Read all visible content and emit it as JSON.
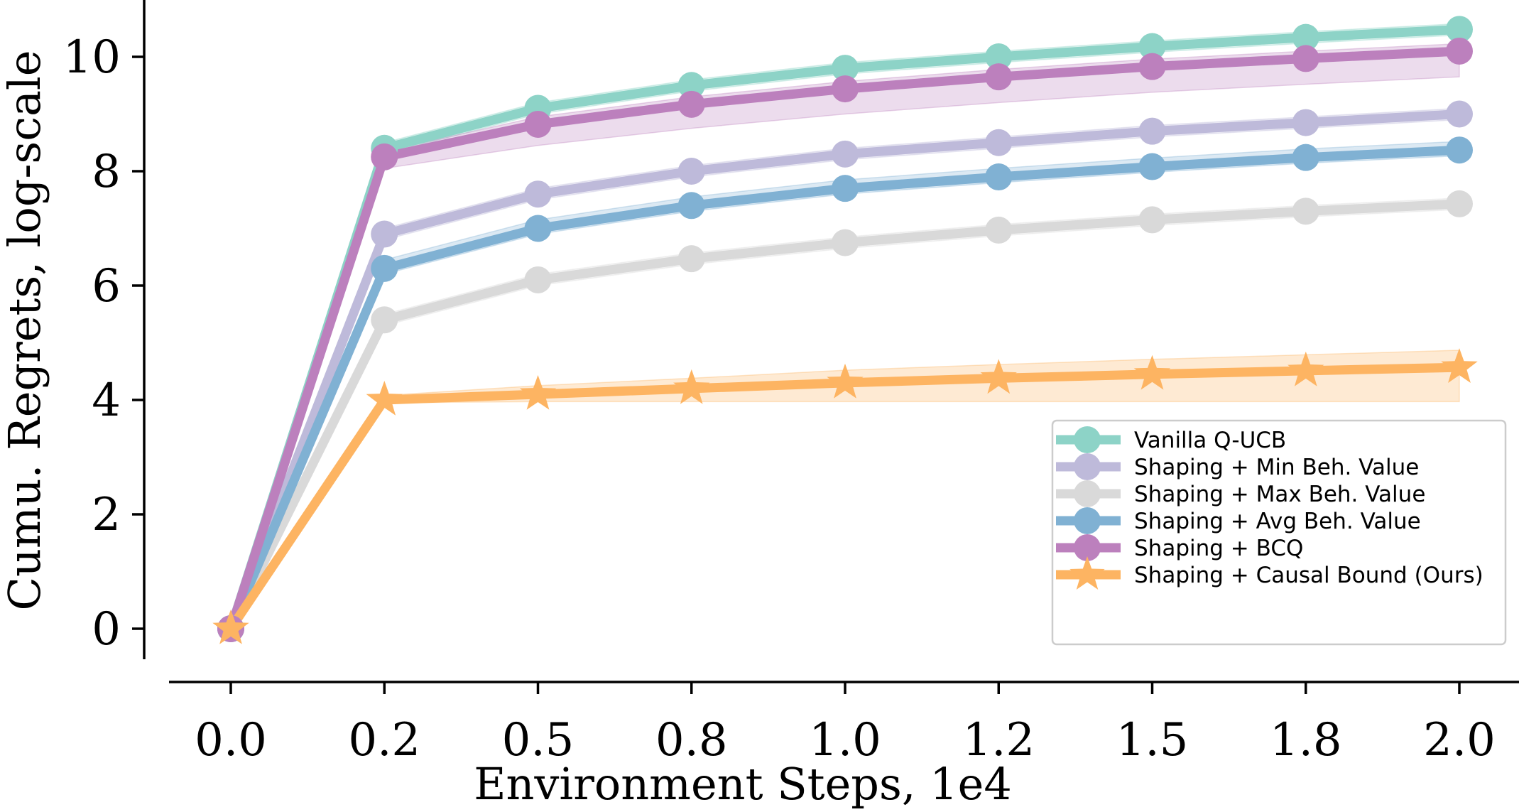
{
  "chart_data": {
    "type": "line",
    "title": "",
    "xlabel": "Environment Steps, 1e4",
    "ylabel": "Cumu. Regrets, log-scale",
    "x": [
      0.0,
      0.25,
      0.5,
      0.75,
      1.0,
      1.25,
      1.5,
      1.75,
      2.0
    ],
    "x_tick_labels": [
      "0.0",
      "0.2",
      "0.5",
      "0.8",
      "1.0",
      "1.2",
      "1.5",
      "1.8",
      "2.0"
    ],
    "y_ticks": [
      0,
      2,
      4,
      6,
      8,
      10
    ],
    "y_tick_labels": [
      "0",
      "2",
      "4",
      "6",
      "8",
      "10"
    ],
    "xlim": [
      -0.1,
      2.2
    ],
    "ylim": [
      -0.5,
      11.0
    ],
    "grid": false,
    "legend_position": "lower-right",
    "series": [
      {
        "name": "Vanilla Q-UCB",
        "color": "#8dd3c7",
        "marker": "circle",
        "values": [
          0.0,
          8.4,
          9.1,
          9.5,
          9.8,
          10.0,
          10.18,
          10.34,
          10.48
        ],
        "band_low": [
          0.0,
          8.3,
          9.0,
          9.4,
          9.7,
          9.9,
          10.08,
          10.24,
          10.38
        ],
        "band_high": [
          0.0,
          8.5,
          9.2,
          9.6,
          9.9,
          10.1,
          10.28,
          10.44,
          10.58
        ]
      },
      {
        "name": "Shaping + Min Beh. Value",
        "color": "#bebada",
        "marker": "circle",
        "values": [
          0.0,
          6.9,
          7.6,
          8.0,
          8.3,
          8.5,
          8.7,
          8.85,
          9.0
        ],
        "band_low": [
          0.0,
          6.8,
          7.5,
          7.9,
          8.2,
          8.4,
          8.6,
          8.75,
          8.9
        ],
        "band_high": [
          0.0,
          7.0,
          7.7,
          8.1,
          8.4,
          8.6,
          8.8,
          8.95,
          9.1
        ]
      },
      {
        "name": "Shaping + Max Beh. Value",
        "color": "#d9d9d9",
        "marker": "circle",
        "values": [
          0.0,
          5.4,
          6.1,
          6.47,
          6.75,
          6.97,
          7.15,
          7.3,
          7.43
        ],
        "band_low": [
          0.0,
          5.3,
          6.0,
          6.37,
          6.65,
          6.87,
          7.05,
          7.2,
          7.33
        ],
        "band_high": [
          0.0,
          5.5,
          6.2,
          6.57,
          6.85,
          7.07,
          7.25,
          7.4,
          7.53
        ]
      },
      {
        "name": "Shaping + Avg Beh. Value",
        "color": "#80b1d3",
        "marker": "circle",
        "values": [
          0.0,
          6.3,
          7.0,
          7.4,
          7.7,
          7.9,
          8.08,
          8.24,
          8.37
        ],
        "band_low": [
          0.0,
          6.2,
          6.9,
          7.3,
          7.6,
          7.8,
          7.98,
          8.14,
          8.27
        ],
        "band_high": [
          0.0,
          6.45,
          7.15,
          7.55,
          7.85,
          8.05,
          8.23,
          8.39,
          8.52
        ]
      },
      {
        "name": "Shaping + BCQ",
        "color": "#bc80bd",
        "marker": "circle",
        "values": [
          0.0,
          8.25,
          8.82,
          9.17,
          9.44,
          9.65,
          9.83,
          9.97,
          10.1
        ],
        "band_low": [
          0.0,
          8.05,
          8.45,
          8.75,
          9.0,
          9.2,
          9.38,
          9.52,
          9.65
        ],
        "band_high": [
          0.0,
          8.35,
          8.95,
          9.3,
          9.57,
          9.78,
          9.96,
          10.1,
          10.23
        ]
      },
      {
        "name": "Shaping + Causal Bound (Ours)",
        "color": "#fdb462",
        "marker": "star",
        "values": [
          0.0,
          4.0,
          4.1,
          4.2,
          4.3,
          4.38,
          4.45,
          4.51,
          4.57
        ],
        "band_low": [
          0.0,
          3.95,
          3.97,
          3.97,
          3.97,
          3.97,
          3.97,
          3.97,
          3.97
        ],
        "band_high": [
          0.0,
          4.08,
          4.25,
          4.38,
          4.52,
          4.62,
          4.71,
          4.79,
          4.87
        ]
      }
    ]
  }
}
